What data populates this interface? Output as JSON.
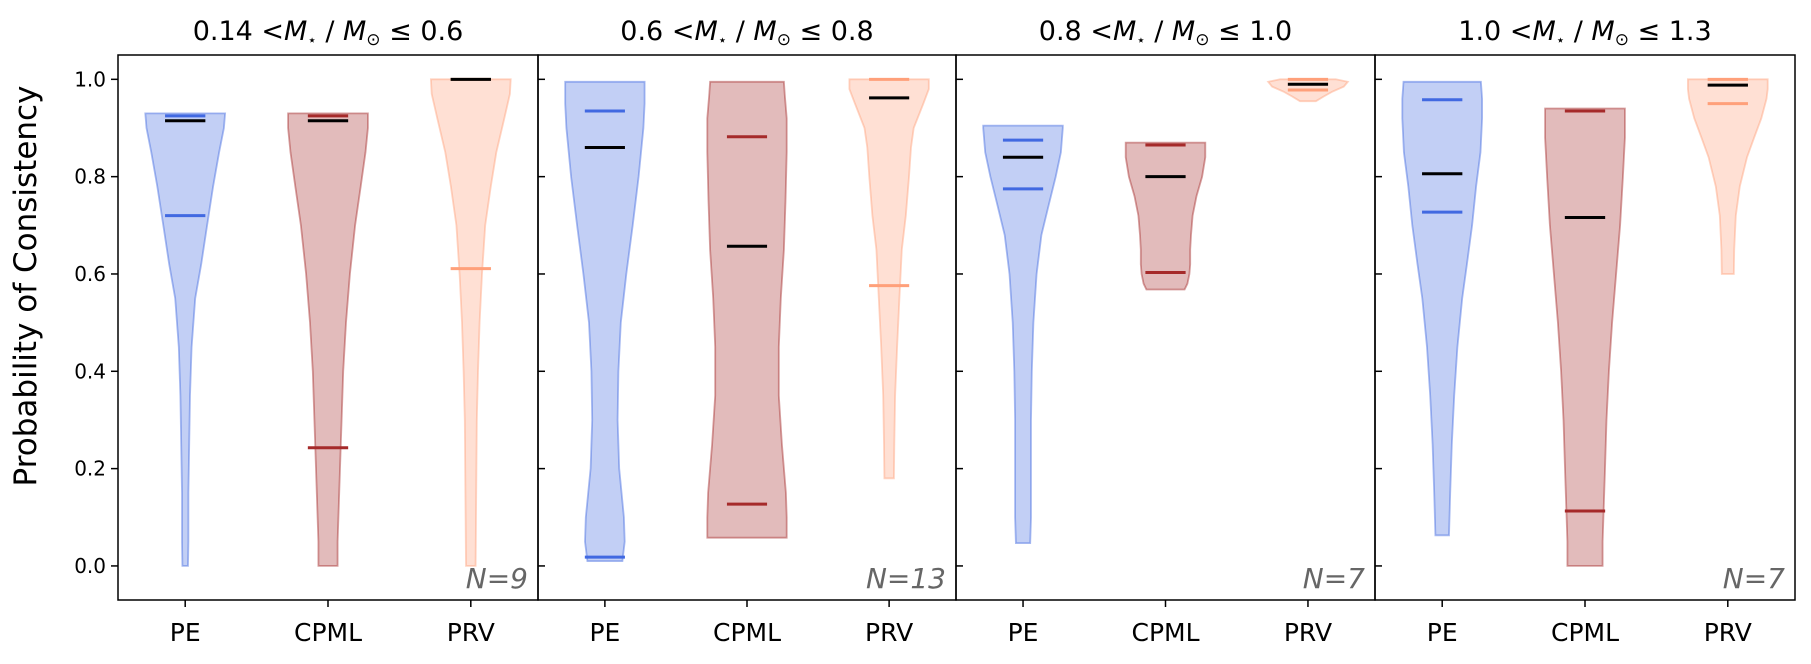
{
  "chart_data": {
    "type": "violin",
    "ylabel": "Probability of Consistency",
    "ylim": [
      -0.07,
      1.05
    ],
    "yticks": [
      "0.0",
      "0.2",
      "0.4",
      "0.6",
      "0.8",
      "1.0"
    ],
    "ytick_values": [
      0.0,
      0.2,
      0.4,
      0.6,
      0.8,
      1.0
    ],
    "categories": [
      "PE",
      "CPML",
      "PRV"
    ],
    "colors": {
      "PE": {
        "fill": "#4169e1",
        "line": "#4169e1"
      },
      "CPML": {
        "fill": "#a52a2a",
        "line": "#a52a2a"
      },
      "PRV": {
        "fill": "#ffa07a",
        "line": "#ffa07a"
      },
      "median": "#000000"
    },
    "panels": [
      {
        "title": {
          "prefix": "0.14",
          "suffix": "0.6"
        },
        "n_label": "N=9",
        "violins": [
          {
            "category": "PE",
            "min": 0.0,
            "max": 0.93,
            "markers": [
              0.925,
              0.72
            ],
            "median": 0.915,
            "profile": [
              [
                0.0,
                0.07
              ],
              [
                0.05,
                0.08
              ],
              [
                0.15,
                0.08
              ],
              [
                0.25,
                0.1
              ],
              [
                0.35,
                0.12
              ],
              [
                0.45,
                0.16
              ],
              [
                0.55,
                0.25
              ],
              [
                0.62,
                0.4
              ],
              [
                0.7,
                0.55
              ],
              [
                0.78,
                0.7
              ],
              [
                0.85,
                0.85
              ],
              [
                0.9,
                0.97
              ],
              [
                0.93,
                1.0
              ]
            ]
          },
          {
            "category": "CPML",
            "min": 0.0,
            "max": 0.93,
            "markers": [
              0.925,
              0.243
            ],
            "median": 0.915,
            "profile": [
              [
                0.0,
                0.24
              ],
              [
                0.05,
                0.24
              ],
              [
                0.1,
                0.26
              ],
              [
                0.2,
                0.3
              ],
              [
                0.3,
                0.34
              ],
              [
                0.4,
                0.38
              ],
              [
                0.5,
                0.45
              ],
              [
                0.6,
                0.55
              ],
              [
                0.7,
                0.68
              ],
              [
                0.78,
                0.82
              ],
              [
                0.85,
                0.94
              ],
              [
                0.9,
                1.0
              ],
              [
                0.93,
                1.0
              ]
            ]
          },
          {
            "category": "PRV",
            "min": 0.0,
            "max": 1.0,
            "markers": [
              1.0,
              0.611
            ],
            "median": 1.0,
            "profile": [
              [
                0.0,
                0.12
              ],
              [
                0.1,
                0.13
              ],
              [
                0.2,
                0.14
              ],
              [
                0.3,
                0.15
              ],
              [
                0.4,
                0.18
              ],
              [
                0.5,
                0.22
              ],
              [
                0.6,
                0.28
              ],
              [
                0.7,
                0.36
              ],
              [
                0.78,
                0.5
              ],
              [
                0.85,
                0.64
              ],
              [
                0.92,
                0.84
              ],
              [
                0.97,
                0.98
              ],
              [
                1.0,
                1.0
              ]
            ]
          }
        ]
      },
      {
        "title": {
          "prefix": "0.6",
          "suffix": "0.8"
        },
        "n_label": "N=13",
        "violins": [
          {
            "category": "PE",
            "min": 0.01,
            "max": 0.995,
            "markers": [
              0.935,
              0.018
            ],
            "median": 0.86,
            "profile": [
              [
                0.01,
                0.44
              ],
              [
                0.05,
                0.5
              ],
              [
                0.1,
                0.48
              ],
              [
                0.2,
                0.36
              ],
              [
                0.3,
                0.32
              ],
              [
                0.4,
                0.34
              ],
              [
                0.5,
                0.4
              ],
              [
                0.6,
                0.54
              ],
              [
                0.7,
                0.7
              ],
              [
                0.8,
                0.85
              ],
              [
                0.9,
                0.97
              ],
              [
                0.95,
                1.0
              ],
              [
                0.995,
                1.0
              ]
            ]
          },
          {
            "category": "CPML",
            "min": 0.058,
            "max": 0.995,
            "markers": [
              0.882,
              0.127
            ],
            "median": 0.657,
            "profile": [
              [
                0.058,
                1.0
              ],
              [
                0.1,
                1.0
              ],
              [
                0.15,
                0.98
              ],
              [
                0.25,
                0.88
              ],
              [
                0.35,
                0.8
              ],
              [
                0.45,
                0.8
              ],
              [
                0.55,
                0.85
              ],
              [
                0.65,
                0.93
              ],
              [
                0.75,
                0.97
              ],
              [
                0.85,
                1.0
              ],
              [
                0.92,
                1.0
              ],
              [
                0.97,
                0.95
              ],
              [
                0.995,
                0.93
              ]
            ]
          },
          {
            "category": "PRV",
            "min": 0.18,
            "max": 1.0,
            "markers": [
              1.0,
              0.576
            ],
            "median": 0.962,
            "profile": [
              [
                0.18,
                0.12
              ],
              [
                0.25,
                0.13
              ],
              [
                0.35,
                0.15
              ],
              [
                0.45,
                0.2
              ],
              [
                0.55,
                0.26
              ],
              [
                0.65,
                0.32
              ],
              [
                0.72,
                0.42
              ],
              [
                0.8,
                0.5
              ],
              [
                0.86,
                0.55
              ],
              [
                0.9,
                0.62
              ],
              [
                0.95,
                0.86
              ],
              [
                0.98,
                1.0
              ],
              [
                1.0,
                1.0
              ]
            ]
          }
        ]
      },
      {
        "title": {
          "prefix": "0.8",
          "suffix": "1.0"
        },
        "n_label": "N=7",
        "violins": [
          {
            "category": "PE",
            "min": 0.047,
            "max": 0.905,
            "markers": [
              0.875,
              0.775
            ],
            "median": 0.84,
            "profile": [
              [
                0.047,
                0.18
              ],
              [
                0.1,
                0.2
              ],
              [
                0.2,
                0.2
              ],
              [
                0.3,
                0.2
              ],
              [
                0.4,
                0.22
              ],
              [
                0.5,
                0.26
              ],
              [
                0.6,
                0.34
              ],
              [
                0.68,
                0.46
              ],
              [
                0.74,
                0.64
              ],
              [
                0.8,
                0.82
              ],
              [
                0.85,
                0.95
              ],
              [
                0.9,
                1.0
              ],
              [
                0.905,
                1.0
              ]
            ]
          },
          {
            "category": "CPML",
            "min": 0.568,
            "max": 0.87,
            "markers": [
              0.865,
              0.603
            ],
            "median": 0.8,
            "profile": [
              [
                0.568,
                0.48
              ],
              [
                0.58,
                0.55
              ],
              [
                0.6,
                0.6
              ],
              [
                0.62,
                0.62
              ],
              [
                0.65,
                0.62
              ],
              [
                0.68,
                0.64
              ],
              [
                0.72,
                0.68
              ],
              [
                0.76,
                0.78
              ],
              [
                0.8,
                0.92
              ],
              [
                0.84,
                1.0
              ],
              [
                0.87,
                1.0
              ]
            ]
          },
          {
            "category": "PRV",
            "min": 0.955,
            "max": 1.0,
            "markers": [
              1.0,
              0.978
            ],
            "median": 0.99,
            "profile": [
              [
                0.955,
                0.2
              ],
              [
                0.965,
                0.4
              ],
              [
                0.975,
                0.62
              ],
              [
                0.985,
                0.9
              ],
              [
                0.995,
                1.0
              ],
              [
                1.0,
                0.7
              ]
            ]
          }
        ]
      },
      {
        "title": {
          "prefix": "1.0",
          "suffix": "1.3"
        },
        "n_label": "N=7",
        "violins": [
          {
            "category": "PE",
            "min": 0.063,
            "max": 0.995,
            "markers": [
              0.958,
              0.727
            ],
            "median": 0.806,
            "profile": [
              [
                0.063,
                0.17
              ],
              [
                0.15,
                0.2
              ],
              [
                0.25,
                0.24
              ],
              [
                0.35,
                0.3
              ],
              [
                0.45,
                0.38
              ],
              [
                0.55,
                0.5
              ],
              [
                0.62,
                0.62
              ],
              [
                0.7,
                0.75
              ],
              [
                0.78,
                0.85
              ],
              [
                0.85,
                0.96
              ],
              [
                0.92,
                1.0
              ],
              [
                0.96,
                1.0
              ],
              [
                0.995,
                0.97
              ]
            ]
          },
          {
            "category": "CPML",
            "min": 0.0,
            "max": 0.94,
            "markers": [
              0.935,
              0.113
            ],
            "median": 0.716,
            "profile": [
              [
                0.0,
                0.44
              ],
              [
                0.05,
                0.44
              ],
              [
                0.1,
                0.46
              ],
              [
                0.2,
                0.5
              ],
              [
                0.3,
                0.54
              ],
              [
                0.4,
                0.6
              ],
              [
                0.5,
                0.68
              ],
              [
                0.6,
                0.78
              ],
              [
                0.7,
                0.88
              ],
              [
                0.8,
                0.95
              ],
              [
                0.88,
                1.0
              ],
              [
                0.94,
                1.0
              ]
            ]
          },
          {
            "category": "PRV",
            "min": 0.6,
            "max": 1.0,
            "markers": [
              1.0,
              0.95
            ],
            "median": 0.988,
            "profile": [
              [
                0.6,
                0.15
              ],
              [
                0.65,
                0.16
              ],
              [
                0.72,
                0.2
              ],
              [
                0.78,
                0.3
              ],
              [
                0.84,
                0.48
              ],
              [
                0.88,
                0.66
              ],
              [
                0.92,
                0.84
              ],
              [
                0.96,
                0.97
              ],
              [
                0.98,
                1.0
              ],
              [
                1.0,
                1.0
              ]
            ]
          }
        ]
      }
    ]
  }
}
